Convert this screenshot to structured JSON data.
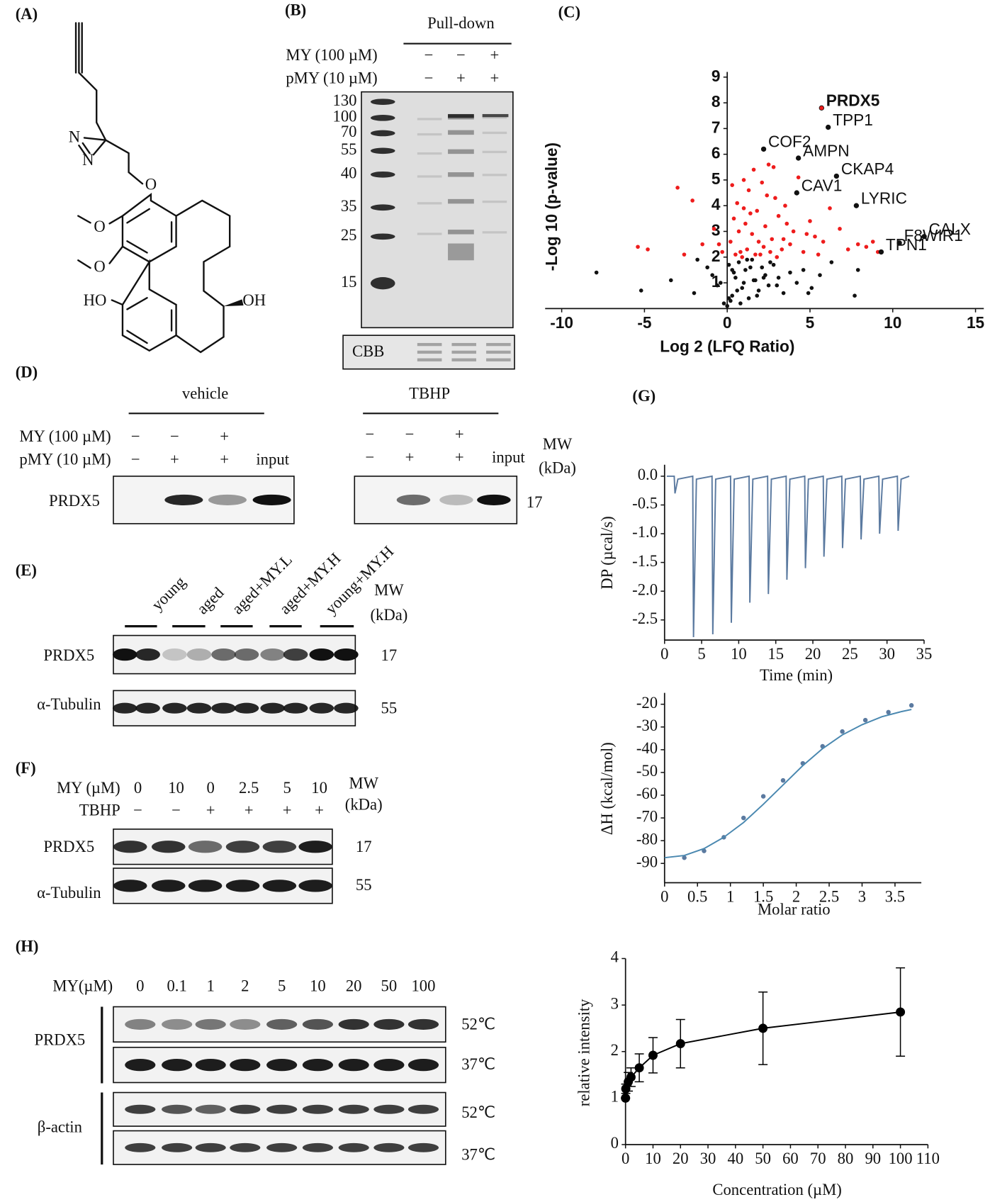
{
  "panel_labels": [
    "(A)",
    "(B)",
    "(C)",
    "(D)",
    "(E)",
    "(F)",
    "(G)",
    "(H)"
  ],
  "panel_a": {
    "atoms": [
      "N",
      "N",
      "O",
      "O",
      "O",
      "HO",
      "OH"
    ]
  },
  "panel_b": {
    "header": "Pull-down",
    "rows": [
      {
        "label": "MY (100 µM)",
        "signs": [
          "−",
          "−",
          "+"
        ]
      },
      {
        "label": "pMY (10 µM)",
        "signs": [
          "−",
          "+",
          "+"
        ]
      }
    ],
    "mw": [
      "130",
      "100",
      "70",
      "55",
      "40",
      "35",
      "25",
      "15"
    ],
    "stain": "CBB"
  },
  "panel_d": {
    "groups": [
      "vehicle",
      "TBHP"
    ],
    "rows": [
      {
        "label": "MY (100 µM)",
        "vehicle": [
          "−",
          "−",
          "+"
        ],
        "tbhp": [
          "−",
          "−",
          "+"
        ]
      },
      {
        "label": "pMY (10 µM)",
        "vehicle": [
          "−",
          "+",
          "+",
          "input"
        ],
        "tbhp": [
          "−",
          "+",
          "+",
          "input"
        ]
      }
    ],
    "mw_header": [
      "MW",
      "(kDa)"
    ],
    "blot": "PRDX5",
    "mw": "17"
  },
  "panel_e": {
    "lanes": [
      "young",
      "aged",
      "aged+MY.L",
      "aged+MY.H",
      "young+MY.H"
    ],
    "mw_header": [
      "MW",
      "(kDa)"
    ],
    "blots": [
      {
        "label": "PRDX5",
        "mw": "17"
      },
      {
        "label": "α-Tubulin",
        "mw": "55"
      }
    ]
  },
  "panel_f": {
    "rows": [
      {
        "label": "MY (µM)",
        "values": [
          "0",
          "10",
          "0",
          "2.5",
          "5",
          "10"
        ]
      },
      {
        "label": "TBHP",
        "values": [
          "−",
          "−",
          "+",
          "+",
          "+",
          "+"
        ]
      }
    ],
    "mw_header": [
      "MW",
      "(kDa)"
    ],
    "blots": [
      {
        "label": "PRDX5",
        "mw": "17"
      },
      {
        "label": "α-Tubulin",
        "mw": "55"
      }
    ]
  },
  "panel_h": {
    "row_label": "MY(µM)",
    "doses": [
      "0",
      "0.1",
      "1",
      "2",
      "5",
      "10",
      "20",
      "50",
      "100"
    ],
    "blots": [
      {
        "label": "PRDX5",
        "temps": [
          "52℃",
          "37℃"
        ]
      },
      {
        "label": "β-actin",
        "temps": [
          "52℃",
          "37℃"
        ]
      }
    ]
  },
  "chart_data": [
    {
      "type": "scatter",
      "xlabel": "Log 2 (LFQ Ratio)",
      "ylabel": "-Log 10 (p-value)",
      "xlim": [
        -11,
        15.5
      ],
      "ylim": [
        0,
        9.2
      ],
      "xticks": [
        -10,
        -5,
        0,
        5,
        10,
        15
      ],
      "yticks": [
        1,
        2,
        3,
        4,
        5,
        6,
        7,
        8,
        9
      ],
      "axes_cross_at_zero": true,
      "series": [
        {
          "color": "#ee1c1c",
          "x": [
            -5.4,
            -4.8,
            -3.0,
            -2.1,
            -1.5,
            -0.8,
            -0.3,
            0.2,
            0.4,
            0.6,
            0.8,
            1.0,
            1.1,
            1.3,
            1.5,
            1.6,
            1.8,
            2.0,
            2.1,
            2.3,
            2.5,
            2.7,
            2.9,
            3.1,
            3.3,
            3.5,
            3.8,
            4.0,
            4.3,
            4.6,
            5.0,
            5.3,
            5.8,
            6.2,
            6.8,
            7.3,
            7.9,
            8.4,
            8.8,
            9.1,
            0.5,
            0.9,
            1.2,
            1.7,
            2.2,
            2.6,
            3.0,
            3.4,
            1.4,
            1.9,
            0.7,
            2.4,
            3.6,
            4.8,
            5.5,
            -0.5,
            0.3,
            1.0,
            2.8,
            -2.6
          ],
          "y": [
            2.4,
            2.3,
            4.7,
            4.2,
            2.5,
            3.1,
            2.2,
            2.6,
            3.5,
            4.1,
            2.2,
            5.0,
            3.3,
            4.6,
            2.9,
            5.4,
            3.8,
            2.1,
            4.9,
            3.2,
            5.6,
            2.7,
            4.3,
            3.6,
            2.3,
            4.0,
            2.5,
            3.0,
            5.1,
            2.2,
            3.4,
            2.8,
            2.6,
            3.9,
            3.1,
            2.3,
            2.5,
            2.4,
            2.6,
            2.2,
            2.1,
            2.0,
            2.3,
            2.1,
            2.4,
            2.2,
            2.0,
            2.7,
            3.7,
            2.6,
            3.0,
            4.4,
            3.3,
            2.9,
            2.1,
            2.5,
            4.8,
            3.9,
            5.5,
            2.1
          ]
        },
        {
          "color": "#111111",
          "x": [
            -7.9,
            -5.2,
            -3.4,
            -2.0,
            -1.2,
            -0.6,
            -0.2,
            0.1,
            0.3,
            0.5,
            0.7,
            0.9,
            1.1,
            1.3,
            1.5,
            1.7,
            1.9,
            2.1,
            2.3,
            2.5,
            2.8,
            3.1,
            3.4,
            3.8,
            4.2,
            4.6,
            5.1,
            5.6,
            6.3,
            7.7,
            -1.8,
            -0.9,
            0.2,
            0.6,
            1.0,
            1.4,
            1.8,
            2.2,
            2.6,
            3.0,
            0.4,
            0.8,
            1.2,
            1.6,
            -0.4,
            0.0,
            0.1,
            0.3,
            7.9,
            4.9
          ],
          "y": [
            1.4,
            0.7,
            1.1,
            0.6,
            1.6,
            0.9,
            0.2,
            1.7,
            0.5,
            1.2,
            1.8,
            0.8,
            1.5,
            0.4,
            1.9,
            1.1,
            0.7,
            1.6,
            1.3,
            0.9,
            1.7,
            1.2,
            0.6,
            1.4,
            1.0,
            1.5,
            0.8,
            1.3,
            1.8,
            0.5,
            1.9,
            1.3,
            0.3,
            0.7,
            1.0,
            1.6,
            0.5,
            1.2,
            1.8,
            0.9,
            1.4,
            0.2,
            1.9,
            1.1,
            1.0,
            0.1,
            0.4,
            1.5,
            1.5,
            0.6
          ]
        }
      ],
      "annotations": [
        {
          "text": "PRDX5",
          "x": 5.7,
          "y": 7.8,
          "color": "#ee1c1c"
        },
        {
          "text": "TPP1",
          "x": 6.1,
          "y": 7.05,
          "color": "#111111"
        },
        {
          "text": "COF2",
          "x": 2.2,
          "y": 6.2,
          "color": "#111111"
        },
        {
          "text": "AMPN",
          "x": 4.3,
          "y": 5.85,
          "color": "#111111"
        },
        {
          "text": "CKAP4",
          "x": 6.6,
          "y": 5.15,
          "color": "#111111"
        },
        {
          "text": "CAV1",
          "x": 4.2,
          "y": 4.5,
          "color": "#111111"
        },
        {
          "text": "LYRIC",
          "x": 7.8,
          "y": 4.0,
          "color": "#111111"
        },
        {
          "text": "CALX",
          "x": 11.9,
          "y": 2.8,
          "color": "#111111"
        },
        {
          "text": "F8WIR1",
          "x": 10.4,
          "y": 2.55,
          "color": "#111111"
        },
        {
          "text": "TPN1",
          "x": 9.3,
          "y": 2.2,
          "color": "#111111"
        }
      ]
    },
    {
      "type": "line",
      "xlabel": "Time (min)",
      "ylabel": "DP (µcal/s)",
      "xlim": [
        0,
        35
      ],
      "ylim": [
        -2.85,
        0.2
      ],
      "xticks": [
        0,
        5,
        10,
        15,
        20,
        25,
        30,
        35
      ],
      "yticks": [
        {
          "value": 0,
          "label": "0.0"
        },
        -0.5,
        {
          "value": -1,
          "label": "-1.0"
        },
        -1.5,
        {
          "value": -2,
          "label": "-2.0"
        },
        -2.5
      ],
      "series": [
        {
          "type": "line",
          "color": "#5b7aa0",
          "x": [
            0.3,
            1.3,
            1.4,
            1.8,
            3.8,
            3.9,
            4.3,
            6.4,
            6.5,
            6.9,
            8.9,
            9.0,
            9.4,
            11.4,
            11.5,
            11.9,
            13.9,
            14.0,
            14.4,
            16.4,
            16.5,
            16.9,
            18.9,
            19.0,
            19.4,
            21.4,
            21.5,
            21.9,
            23.9,
            24.0,
            24.4,
            26.4,
            26.5,
            26.9,
            28.9,
            29.0,
            29.4,
            31.4,
            31.5,
            31.9,
            33.0
          ],
          "y": [
            0,
            0,
            -0.3,
            -0.05,
            0,
            -2.8,
            -0.05,
            0,
            -2.75,
            -0.05,
            0,
            -2.55,
            -0.05,
            0,
            -2.2,
            -0.05,
            0,
            -2.05,
            -0.05,
            0,
            -1.8,
            -0.05,
            0,
            -1.6,
            -0.05,
            0,
            -1.4,
            -0.05,
            0,
            -1.25,
            -0.05,
            0,
            -1.1,
            -0.05,
            0,
            -1.0,
            -0.05,
            0,
            -0.95,
            -0.05,
            0
          ]
        }
      ]
    },
    {
      "type": "scatter",
      "xlabel": "Molar ratio",
      "ylabel": "ΔH (kcal/mol)",
      "xlim": [
        0,
        3.9
      ],
      "ylim": [
        -98.5,
        -15
      ],
      "xticks": [
        0,
        0.5,
        1,
        1.5,
        2,
        2.5,
        3,
        3.5
      ],
      "yticks": [
        -20,
        -30,
        -40,
        -50,
        -60,
        -70,
        -80,
        -90
      ],
      "series": [
        {
          "type": "scatter",
          "color": "#5b7aa0",
          "x": [
            0.3,
            0.6,
            0.9,
            1.2,
            1.5,
            1.8,
            2.1,
            2.4,
            2.7,
            3.05,
            3.4,
            3.75
          ],
          "y": [
            -87.5,
            -84.5,
            -78.5,
            -70,
            -60.5,
            -53.5,
            -46,
            -38.5,
            -32,
            -27,
            -23.5,
            -20.5
          ]
        },
        {
          "type": "line",
          "color": "#4a88b0",
          "x": [
            0,
            0.3,
            0.6,
            0.9,
            1.2,
            1.5,
            1.8,
            2.1,
            2.4,
            2.7,
            3.0,
            3.3,
            3.6,
            3.75
          ],
          "y": [
            -87.5,
            -86.5,
            -83.5,
            -78.5,
            -72,
            -64,
            -55.5,
            -47,
            -39.5,
            -33.5,
            -29,
            -25.5,
            -23.2,
            -22.3
          ]
        }
      ]
    },
    {
      "type": "line",
      "xlabel": "Concentration (µM)",
      "ylabel": "relative intensity",
      "xlim": [
        0,
        110
      ],
      "ylim": [
        0,
        4
      ],
      "xticks": [
        0,
        10,
        20,
        30,
        40,
        50,
        60,
        70,
        80,
        90,
        100,
        110
      ],
      "yticks": [
        0,
        1,
        2,
        3,
        4
      ],
      "series": [
        {
          "type": "line",
          "color": "#000000",
          "markers": true,
          "x": [
            0,
            0.1,
            1,
            2,
            5,
            10,
            20,
            50,
            100
          ],
          "y": [
            1,
            1.2,
            1.35,
            1.45,
            1.65,
            1.92,
            2.17,
            2.5,
            2.85
          ],
          "errors": [
            0,
            0.1,
            0.2,
            0.2,
            0.3,
            0.38,
            0.52,
            0.78,
            0.95
          ]
        }
      ]
    }
  ]
}
